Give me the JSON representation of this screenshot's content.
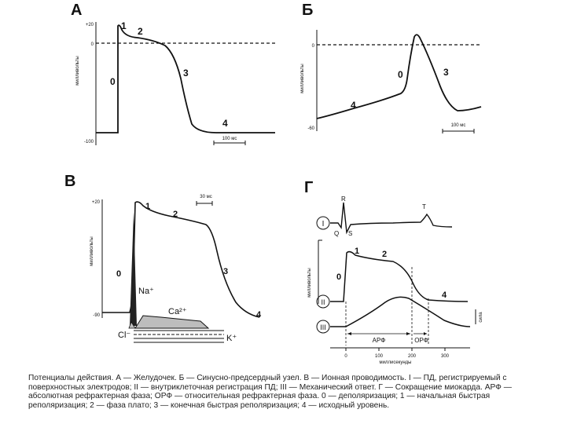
{
  "panels": {
    "A": {
      "letter": "А",
      "ylabel": "милливольты",
      "tick_top": "+20",
      "tick_zero": "0",
      "tick_bottom": "-100",
      "phases": [
        "1",
        "2",
        "3",
        "4",
        "0"
      ],
      "scalebar": "100 мс"
    },
    "B": {
      "letter": "Б",
      "ylabel": "милливольты",
      "tick_zero": "0",
      "tick_bottom": "-60",
      "phases": [
        "0",
        "3",
        "4"
      ],
      "scalebar": "100 мс"
    },
    "V": {
      "letter": "В",
      "ylabel": "милливольты",
      "tick_top": "+20",
      "tick_bottom": "-90",
      "phases": [
        "1",
        "2",
        "3",
        "4",
        "0"
      ],
      "scalebar": "30 мс",
      "ions": {
        "na": "Na⁺",
        "ca": "Ca²⁺",
        "cl": "Cl⁻",
        "k": "K⁺"
      }
    },
    "G": {
      "letter": "Г",
      "ecg_waves": {
        "r": "R",
        "q": "Q",
        "s": "S",
        "t": "T"
      },
      "rows": {
        "ecg": "I",
        "ap": "II",
        "mech": "III"
      },
      "ap_phases": [
        "1",
        "2",
        "0",
        "4"
      ],
      "ylabel": "милливольты",
      "mech_label": "сила",
      "arf": "АРФ",
      "orf": "ОРФ",
      "x_ticks": [
        "0",
        "100",
        "200",
        "300"
      ],
      "xlabel": "миллисекунды"
    }
  },
  "caption": "Потенциалы действия. А — Желудочек. Б — Синусно-предсердный узел. В — Ионная проводимость. I — ПД, регистрируемый с поверхностных электродов; II — внутриклеточная регистрация ПД; III — Механический ответ. Г — Сокращение миокарда. АРФ — абсолютная рефрактерная фаза; ОРФ — относительная рефрактерная фаза. 0 — деполяризация; 1 — начальная быстрая реполяризация; 2 — фаза плато; 3 — конечная быстрая реполяризация; 4 — исходный уровень.",
  "colors": {
    "line": "#111111",
    "fill_gray": "#bdbdbd",
    "fill_dark": "#222222"
  }
}
